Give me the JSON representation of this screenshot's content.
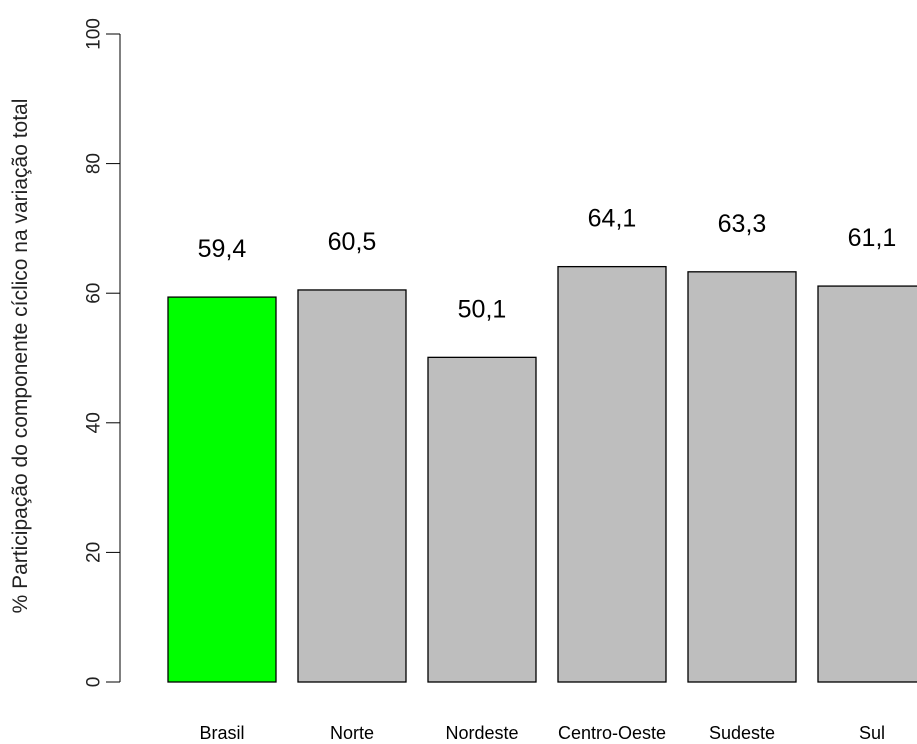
{
  "chart_data": {
    "type": "bar",
    "categories": [
      "Brasil",
      "Norte",
      "Nordeste",
      "Centro-Oeste",
      "Sudeste",
      "Sul"
    ],
    "values": [
      59.4,
      60.5,
      50.1,
      64.1,
      63.3,
      61.1
    ],
    "data_labels": [
      "59,4",
      "60,5",
      "50,1",
      "64,1",
      "63,3",
      "61,1"
    ],
    "title": "",
    "xlabel": "",
    "ylabel": "% Participação do componente cíclico na variação total",
    "ylim": [
      0,
      100
    ],
    "yticks": [
      0,
      20,
      40,
      60,
      80,
      100
    ],
    "grid": false,
    "legend": "none",
    "colors": {
      "highlight": "#00ff00",
      "default": "#bebebe",
      "border": "#000000"
    },
    "highlight_category": "Brasil"
  }
}
